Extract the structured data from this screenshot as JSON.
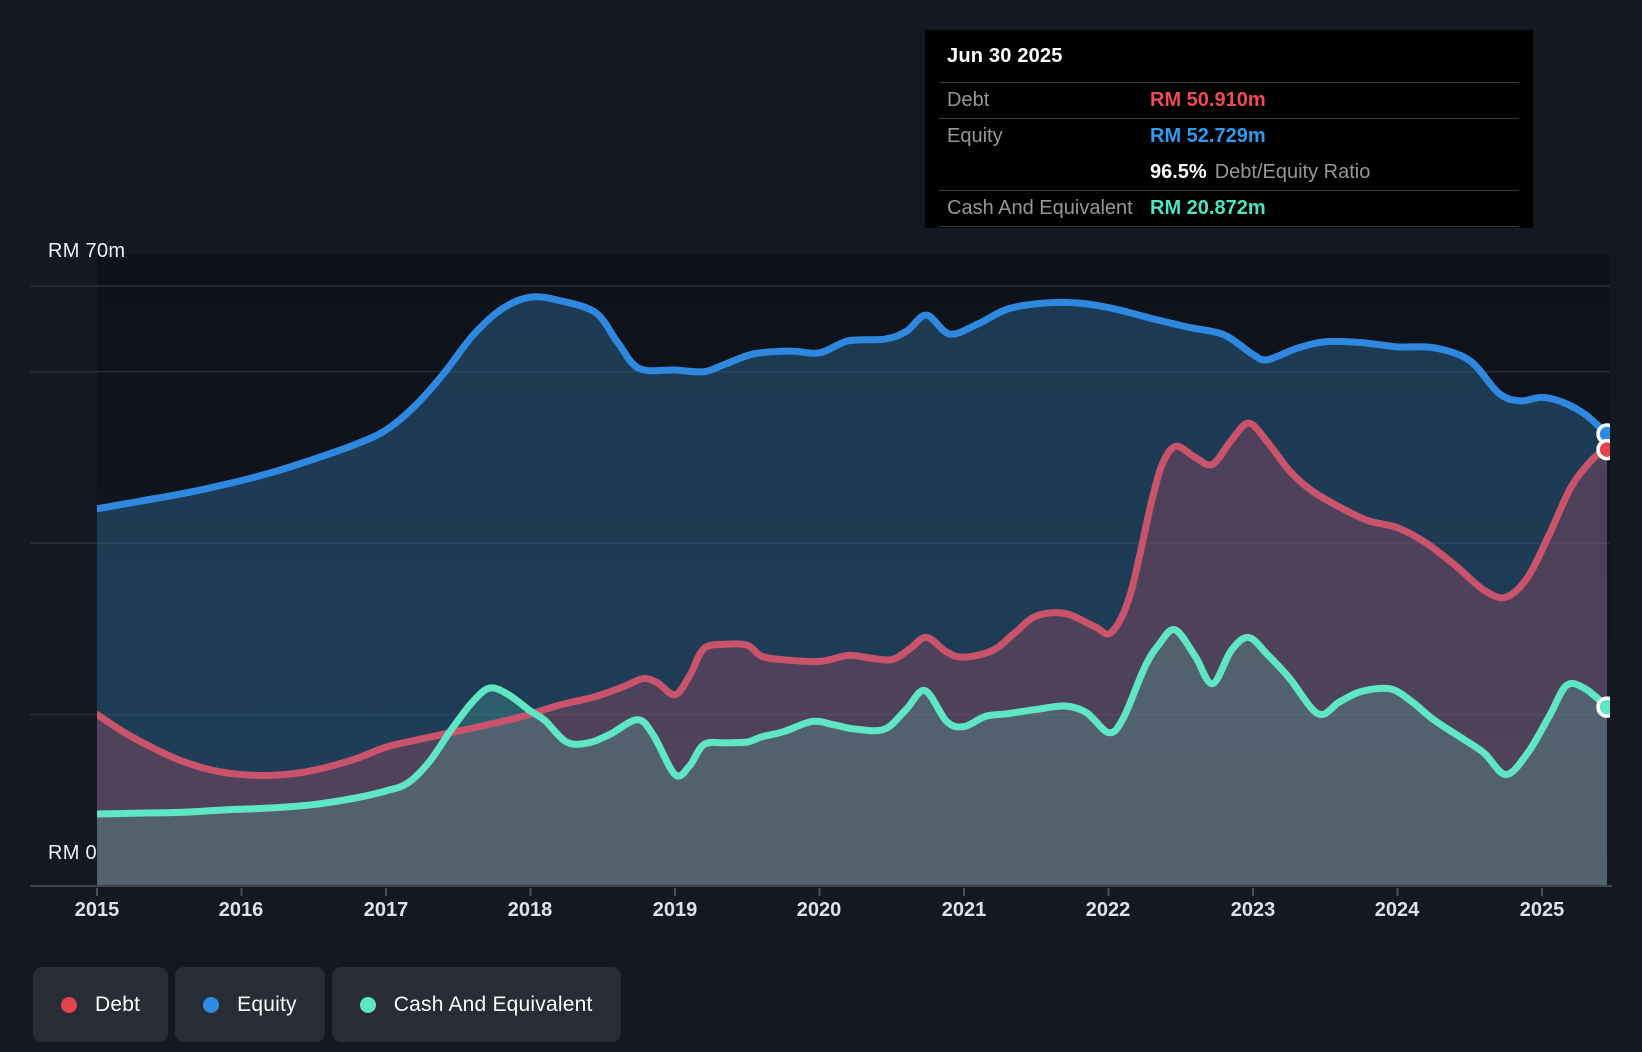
{
  "tooltip": {
    "date": "Jun 30 2025",
    "debt_label": "Debt",
    "debt_value": "RM 50.910m",
    "equity_label": "Equity",
    "equity_value": "RM 52.729m",
    "ratio_value": "96.5%",
    "ratio_label": "Debt/Equity Ratio",
    "cash_label": "Cash And Equivalent",
    "cash_value": "RM 20.872m"
  },
  "y_axis": {
    "top_label": "RM 70m",
    "bottom_label": "RM 0"
  },
  "x_axis": {
    "years": [
      "2015",
      "2016",
      "2017",
      "2018",
      "2019",
      "2020",
      "2021",
      "2022",
      "2023",
      "2024",
      "2025"
    ]
  },
  "legend": [
    {
      "label": "Debt",
      "color": "#e2454e"
    },
    {
      "label": "Equity",
      "color": "#2e8ce4"
    },
    {
      "label": "Cash And Equivalent",
      "color": "#5fe6c5"
    }
  ],
  "colors": {
    "page_bg": "#141821",
    "tooltip_bg": "#000000",
    "gridline": "#272d36",
    "axis_line": "#40464f",
    "tick": "#4a5058",
    "debt_line": "#c9536a",
    "equity_line": "#2e88df",
    "cash_line": "#5fe6c5",
    "debt_fill": "rgba(205,79,102,0.28)",
    "equity_fill": "rgba(43,97,140,0.5)",
    "cash_fill": "rgba(100,225,195,0.20)"
  },
  "chart_data": {
    "type": "area",
    "unit": "RM millions",
    "x_range": [
      2015.0,
      2025.5
    ],
    "ylim": [
      0,
      70
    ],
    "gridlines_rm": [
      0,
      20,
      40,
      60,
      70
    ],
    "legend_position": "bottom-left",
    "series": [
      {
        "name": "Equity",
        "points": [
          [
            2015.0,
            44.0
          ],
          [
            2015.3,
            44.9
          ],
          [
            2015.6,
            45.8
          ],
          [
            2015.9,
            46.9
          ],
          [
            2016.2,
            48.2
          ],
          [
            2016.5,
            49.8
          ],
          [
            2016.8,
            51.6
          ],
          [
            2017.0,
            53.2
          ],
          [
            2017.2,
            56.0
          ],
          [
            2017.4,
            59.8
          ],
          [
            2017.6,
            64.2
          ],
          [
            2017.8,
            67.3
          ],
          [
            2018.0,
            68.7
          ],
          [
            2018.2,
            68.3
          ],
          [
            2018.45,
            66.9
          ],
          [
            2018.6,
            63.5
          ],
          [
            2018.75,
            60.4
          ],
          [
            2019.0,
            60.2
          ],
          [
            2019.2,
            60.0
          ],
          [
            2019.35,
            60.9
          ],
          [
            2019.55,
            62.1
          ],
          [
            2019.8,
            62.4
          ],
          [
            2020.0,
            62.2
          ],
          [
            2020.2,
            63.6
          ],
          [
            2020.45,
            63.8
          ],
          [
            2020.6,
            64.7
          ],
          [
            2020.74,
            66.6
          ],
          [
            2020.9,
            64.4
          ],
          [
            2021.1,
            65.6
          ],
          [
            2021.3,
            67.3
          ],
          [
            2021.55,
            68.0
          ],
          [
            2021.8,
            68.0
          ],
          [
            2022.05,
            67.3
          ],
          [
            2022.3,
            66.2
          ],
          [
            2022.55,
            65.2
          ],
          [
            2022.8,
            64.3
          ],
          [
            2023.0,
            62.0
          ],
          [
            2023.1,
            61.4
          ],
          [
            2023.3,
            62.7
          ],
          [
            2023.5,
            63.5
          ],
          [
            2023.75,
            63.4
          ],
          [
            2024.0,
            62.9
          ],
          [
            2024.25,
            62.8
          ],
          [
            2024.5,
            61.3
          ],
          [
            2024.7,
            57.5
          ],
          [
            2024.85,
            56.6
          ],
          [
            2025.0,
            57.0
          ],
          [
            2025.15,
            56.4
          ],
          [
            2025.3,
            55.0
          ],
          [
            2025.45,
            52.729
          ]
        ]
      },
      {
        "name": "Debt",
        "points": [
          [
            2015.0,
            20.0
          ],
          [
            2015.2,
            17.8
          ],
          [
            2015.4,
            16.0
          ],
          [
            2015.6,
            14.5
          ],
          [
            2015.8,
            13.5
          ],
          [
            2016.0,
            13.0
          ],
          [
            2016.2,
            12.9
          ],
          [
            2016.4,
            13.2
          ],
          [
            2016.6,
            13.9
          ],
          [
            2016.8,
            14.9
          ],
          [
            2017.0,
            16.2
          ],
          [
            2017.2,
            17.0
          ],
          [
            2017.45,
            17.9
          ],
          [
            2017.7,
            18.8
          ],
          [
            2017.95,
            19.8
          ],
          [
            2018.2,
            21.1
          ],
          [
            2018.45,
            22.1
          ],
          [
            2018.65,
            23.3
          ],
          [
            2018.78,
            24.2
          ],
          [
            2018.88,
            23.7
          ],
          [
            2019.0,
            22.3
          ],
          [
            2019.1,
            24.5
          ],
          [
            2019.2,
            27.7
          ],
          [
            2019.35,
            28.2
          ],
          [
            2019.5,
            28.1
          ],
          [
            2019.6,
            26.8
          ],
          [
            2019.75,
            26.4
          ],
          [
            2020.0,
            26.2
          ],
          [
            2020.2,
            26.9
          ],
          [
            2020.35,
            26.6
          ],
          [
            2020.5,
            26.4
          ],
          [
            2020.62,
            27.6
          ],
          [
            2020.74,
            29.0
          ],
          [
            2020.88,
            27.3
          ],
          [
            2021.0,
            26.7
          ],
          [
            2021.2,
            27.5
          ],
          [
            2021.35,
            29.5
          ],
          [
            2021.5,
            31.5
          ],
          [
            2021.7,
            31.8
          ],
          [
            2021.9,
            30.3
          ],
          [
            2022.02,
            29.6
          ],
          [
            2022.15,
            34.0
          ],
          [
            2022.3,
            45.0
          ],
          [
            2022.38,
            49.5
          ],
          [
            2022.47,
            51.3
          ],
          [
            2022.6,
            50.0
          ],
          [
            2022.72,
            49.2
          ],
          [
            2022.85,
            52.0
          ],
          [
            2022.97,
            54.0
          ],
          [
            2023.1,
            51.8
          ],
          [
            2023.25,
            48.5
          ],
          [
            2023.4,
            46.2
          ],
          [
            2023.6,
            44.2
          ],
          [
            2023.8,
            42.6
          ],
          [
            2024.0,
            41.8
          ],
          [
            2024.2,
            40.0
          ],
          [
            2024.4,
            37.4
          ],
          [
            2024.6,
            34.5
          ],
          [
            2024.75,
            33.7
          ],
          [
            2024.9,
            36.0
          ],
          [
            2025.05,
            41.0
          ],
          [
            2025.2,
            46.5
          ],
          [
            2025.35,
            49.8
          ],
          [
            2025.45,
            50.91
          ]
        ]
      },
      {
        "name": "Cash And Equivalent",
        "points": [
          [
            2015.0,
            8.4
          ],
          [
            2015.3,
            8.5
          ],
          [
            2015.6,
            8.6
          ],
          [
            2015.9,
            8.9
          ],
          [
            2016.2,
            9.1
          ],
          [
            2016.5,
            9.5
          ],
          [
            2016.8,
            10.3
          ],
          [
            2017.0,
            11.1
          ],
          [
            2017.15,
            12.0
          ],
          [
            2017.3,
            14.5
          ],
          [
            2017.45,
            18.2
          ],
          [
            2017.6,
            21.5
          ],
          [
            2017.72,
            23.1
          ],
          [
            2017.85,
            22.3
          ],
          [
            2018.0,
            20.4
          ],
          [
            2018.1,
            19.3
          ],
          [
            2018.25,
            16.8
          ],
          [
            2018.4,
            16.7
          ],
          [
            2018.55,
            17.7
          ],
          [
            2018.74,
            19.4
          ],
          [
            2018.85,
            17.6
          ],
          [
            2019.0,
            13.0
          ],
          [
            2019.1,
            14.0
          ],
          [
            2019.2,
            16.5
          ],
          [
            2019.35,
            16.7
          ],
          [
            2019.5,
            16.8
          ],
          [
            2019.6,
            17.4
          ],
          [
            2019.75,
            18.0
          ],
          [
            2019.95,
            19.2
          ],
          [
            2020.1,
            18.8
          ],
          [
            2020.25,
            18.3
          ],
          [
            2020.45,
            18.3
          ],
          [
            2020.6,
            20.6
          ],
          [
            2020.73,
            22.8
          ],
          [
            2020.88,
            19.2
          ],
          [
            2021.0,
            18.6
          ],
          [
            2021.15,
            19.8
          ],
          [
            2021.3,
            20.1
          ],
          [
            2021.5,
            20.6
          ],
          [
            2021.7,
            21.0
          ],
          [
            2021.85,
            20.2
          ],
          [
            2022.0,
            17.9
          ],
          [
            2022.1,
            19.5
          ],
          [
            2022.25,
            25.5
          ],
          [
            2022.35,
            28.2
          ],
          [
            2022.46,
            29.9
          ],
          [
            2022.6,
            26.8
          ],
          [
            2022.72,
            23.6
          ],
          [
            2022.85,
            27.5
          ],
          [
            2022.97,
            29.0
          ],
          [
            2023.1,
            27.0
          ],
          [
            2023.25,
            24.3
          ],
          [
            2023.45,
            20.1
          ],
          [
            2023.6,
            21.5
          ],
          [
            2023.75,
            22.7
          ],
          [
            2023.95,
            23.0
          ],
          [
            2024.1,
            21.5
          ],
          [
            2024.25,
            19.4
          ],
          [
            2024.45,
            17.2
          ],
          [
            2024.6,
            15.5
          ],
          [
            2024.75,
            13.0
          ],
          [
            2024.9,
            15.5
          ],
          [
            2025.05,
            19.8
          ],
          [
            2025.17,
            23.4
          ],
          [
            2025.3,
            23.0
          ],
          [
            2025.45,
            20.872
          ]
        ]
      }
    ]
  }
}
